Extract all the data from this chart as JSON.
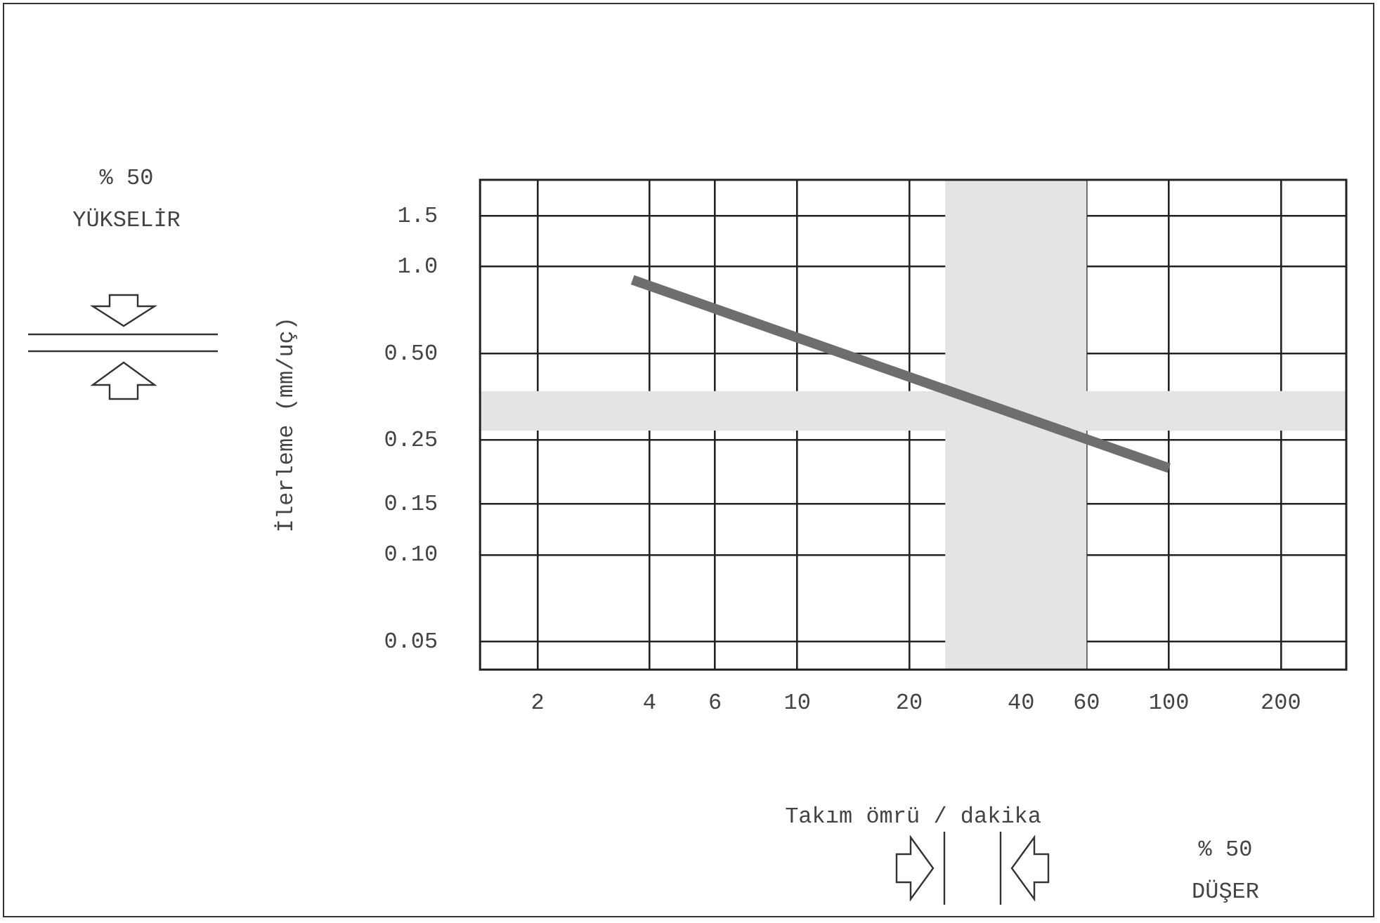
{
  "chart_data": {
    "type": "line",
    "xlabel": "Takım ömrü / dakika",
    "ylabel": "İlerleme (mm/uç)",
    "log": "xy",
    "grid": true,
    "xlim": [
      1.4,
      300
    ],
    "xticks": [
      2,
      4,
      6,
      10,
      20,
      40,
      60,
      100,
      200
    ],
    "ylim": [
      0.04,
      2
    ],
    "yticks": [
      0.05,
      {
        "value": 0.1,
        "label": "0.10"
      },
      0.15,
      0.25,
      {
        "value": 0.5,
        "label": "0.50"
      },
      {
        "value": 1,
        "label": "1.0"
      },
      1.5
    ],
    "x": [
      3.6,
      100
    ],
    "series": [
      {
        "color": "#6e6e6e",
        "values": [
          0.9,
          0.2
        ]
      }
    ],
    "bands": [
      {
        "axis": "y",
        "from": 0.27,
        "to": 0.37,
        "color": "#e4e4e4"
      },
      {
        "axis": "x",
        "from": 25,
        "to": 60,
        "color": "#e4e4e4"
      }
    ],
    "annotations": [
      "% 50",
      "YÜKSELİR",
      "% 50",
      "DÜŞER"
    ]
  }
}
